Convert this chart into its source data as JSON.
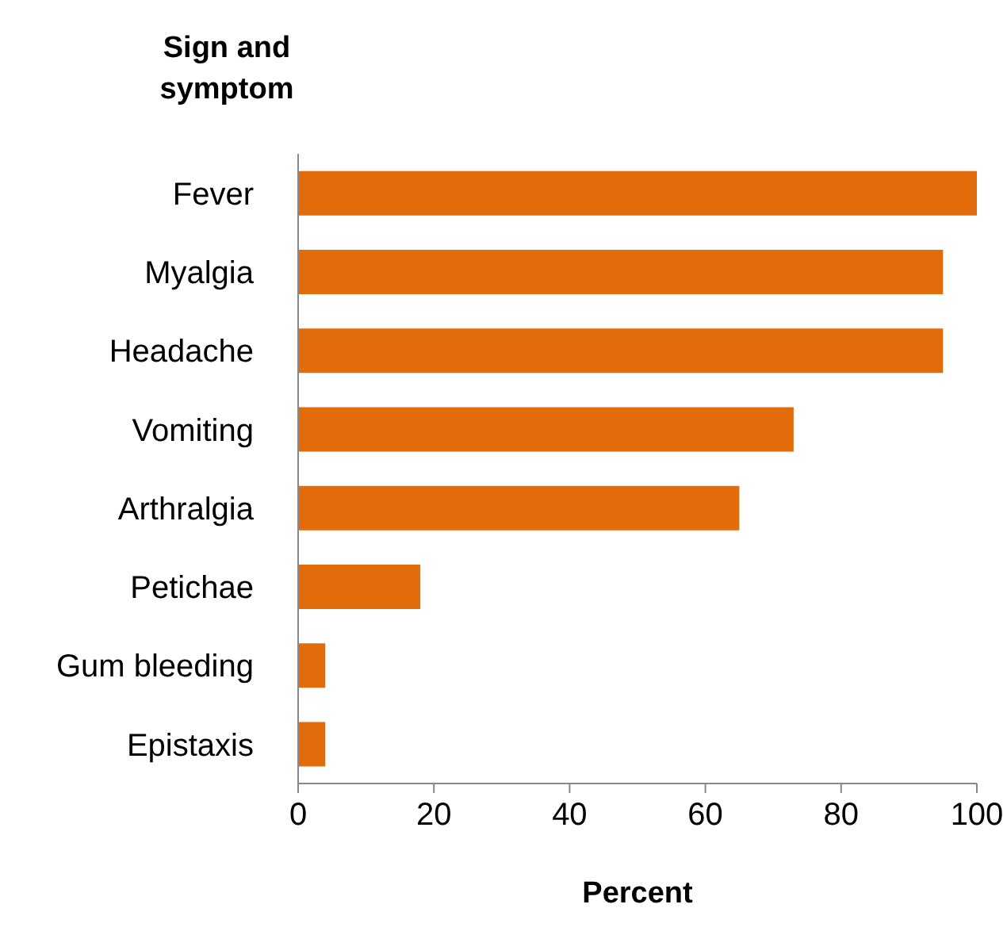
{
  "chart_data": {
    "type": "bar",
    "orientation": "horizontal",
    "title": "Sign and\nsymptom",
    "xlabel": "Percent",
    "categories": [
      "Fever",
      "Myalgia",
      "Headache",
      "Vomiting",
      "Arthralgia",
      "Petichae",
      "Gum bleeding",
      "Epistaxis"
    ],
    "values": [
      100,
      95,
      95,
      73,
      65,
      18,
      4,
      4
    ],
    "color": "#e36c0a",
    "xlim": [
      0,
      100
    ],
    "xticks": [
      0,
      20,
      40,
      60,
      80,
      100
    ]
  }
}
